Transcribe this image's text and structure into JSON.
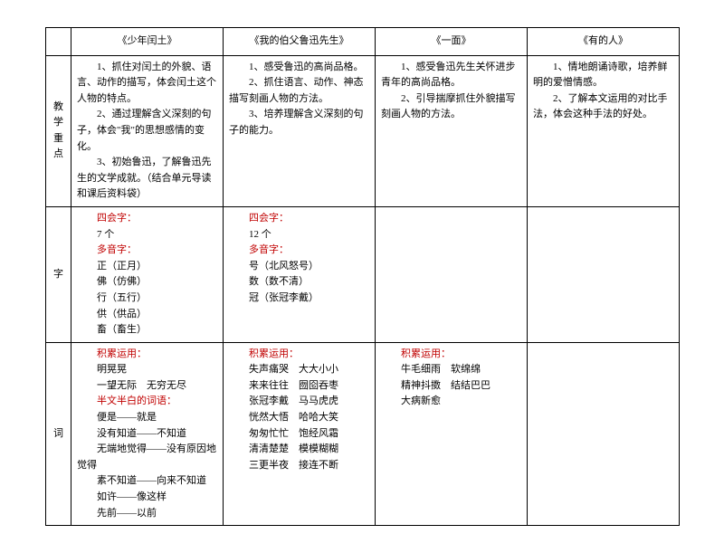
{
  "headers": [
    "《少年闰土》",
    "《我的伯父鲁迅先生》",
    "《一面》",
    "《有的人》"
  ],
  "rowLabels": {
    "focus": "教学重点",
    "char": "字",
    "word": "词"
  },
  "labels": {
    "sihui": "四会字：",
    "duoyin": "多音字：",
    "jilei": "积累运用：",
    "banwen": "半文半白的词语："
  },
  "focus": {
    "col1": [
      "　　1、抓住对闰土的外貌、语言、动作的描写，体会闰土这个人物的特点。",
      "　　2、通过理解含义深刻的句子，体会\"我\"的思想感情的变化。",
      "　　3、初始鲁迅，了解鲁迅先生的文学成就。（结合单元导读和课后资料袋）"
    ],
    "col2": [
      "　　1、感受鲁迅的高尚品格。",
      "　　2、抓住语言、动作、神态描写刻画人物的方法。",
      "　　3、培养理解含义深刻的句子的能力。"
    ],
    "col3": [
      "　　1、感受鲁迅先生关怀进步青年的高尚品格。",
      "　　2、引导揣摩抓住外貌描写刻画人物的方法。"
    ],
    "col4": [
      "　　1、情地朗诵诗歌，培养鲜明的爱憎情感。",
      "　　2、了解本文运用的对比手法，体会这种手法的好处。"
    ]
  },
  "char": {
    "col1": {
      "sihuiCount": "7 个",
      "duoyinList": [
        "正（正月）",
        "佛（仿佛）",
        "行（五行）",
        "供（供品）",
        "畜（畜生）"
      ]
    },
    "col2": {
      "sihuiCount": "12 个",
      "duoyinList": [
        "号（北风怒号）",
        "数（数不清）",
        "冠（张冠李戴）"
      ]
    }
  },
  "word": {
    "col1": {
      "jileiList": [
        "明晃晃",
        "一望无际　无穷无尽"
      ],
      "banwenList": [
        "便是——就是",
        "没有知道——不知道",
        "无端地觉得——没有原因地觉得",
        "素不知道——向来不知道",
        "如许——像这样",
        "先前——以前"
      ]
    },
    "col2": {
      "jileiList": [
        "失声痛哭　大大小小",
        "来来往往　囫囵吞枣",
        "张冠李戴　马马虎虎",
        "恍然大悟　哈哈大笑",
        "匆匆忙忙　饱经风霜",
        "清清楚楚　模模糊糊",
        "三更半夜　接连不断"
      ]
    },
    "col3": {
      "jileiList": [
        "牛毛细雨　软绵绵",
        "精神抖擞　结结巴巴",
        "大病新愈"
      ]
    }
  }
}
